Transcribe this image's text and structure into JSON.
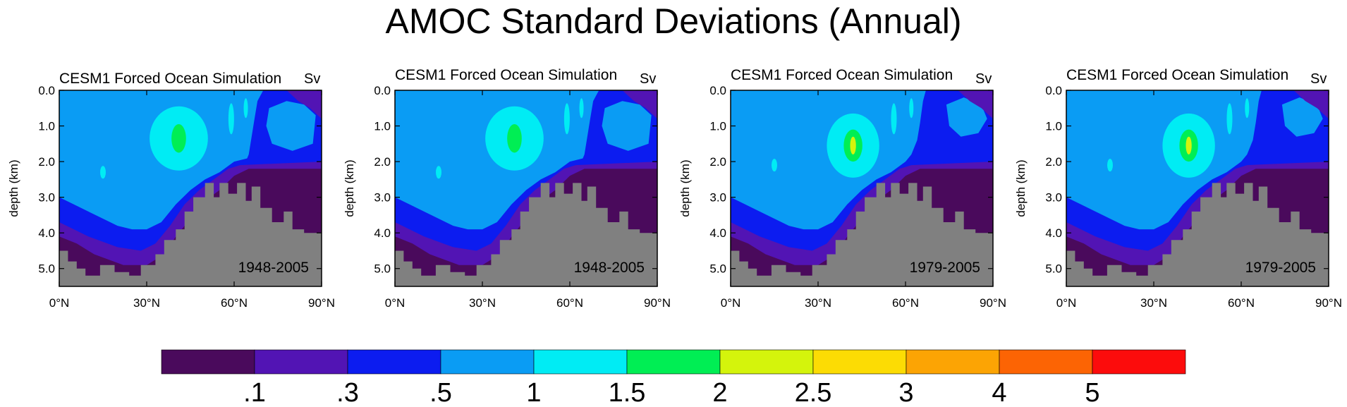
{
  "title": "AMOC Standard Deviations (Annual)",
  "colors": {
    "levels": [
      "#4a0a5c",
      "#5214b4",
      "#0c1cf0",
      "#0a9cf4",
      "#00ecf4",
      "#00ee54",
      "#d4f40c",
      "#fcdc04",
      "#fca404",
      "#fc6404",
      "#fc0c0c"
    ],
    "land": "#808080",
    "axis": "#000000"
  },
  "colorbar": {
    "labels": [
      ".1",
      ".3",
      ".5",
      "1",
      "1.5",
      "2",
      "2.5",
      "3",
      "4",
      "5"
    ]
  },
  "chart_data": [
    {
      "type": "contour",
      "title": "CESM1 Forced Ocean Simulation",
      "unit": "Sv",
      "period": "1948-2005",
      "ylabel": "depth (km)",
      "xlim": [
        0,
        90
      ],
      "ylim": [
        5.5,
        0.0
      ],
      "xticks": [
        "0°N",
        "30°N",
        "60°N",
        "90°N"
      ],
      "yticks": [
        "0.0",
        "1.0",
        "2.0",
        "3.0",
        "4.0",
        "5.0"
      ],
      "max_std_sv": 2.2
    },
    {
      "type": "contour",
      "title": "CESM1 Forced Ocean Simulation",
      "unit": "Sv",
      "period": "1948-2005",
      "ylabel": "depth (km)",
      "xlim": [
        0,
        90
      ],
      "ylim": [
        5.5,
        0.0
      ],
      "xticks": [
        "0°N",
        "30°N",
        "60°N",
        "90°N"
      ],
      "yticks": [
        "0.0",
        "1.0",
        "2.0",
        "3.0",
        "4.0",
        "5.0"
      ],
      "max_std_sv": 2.2
    },
    {
      "type": "contour",
      "title": "CESM1 Forced Ocean Simulation",
      "unit": "Sv",
      "period": "1979-2005",
      "ylabel": "depth (km)",
      "xlim": [
        0,
        90
      ],
      "ylim": [
        5.5,
        0.0
      ],
      "xticks": [
        "0°N",
        "30°N",
        "60°N",
        "90°N"
      ],
      "yticks": [
        "0.0",
        "1.0",
        "2.0",
        "3.0",
        "4.0",
        "5.0"
      ],
      "max_std_sv": 2.7
    },
    {
      "type": "contour",
      "title": "CESM1 Forced Ocean Simulation",
      "unit": "Sv",
      "period": "1979-2005",
      "ylabel": "depth (km)",
      "xlim": [
        0,
        90
      ],
      "ylim": [
        5.5,
        0.0
      ],
      "xticks": [
        "0°N",
        "30°N",
        "60°N",
        "90°N"
      ],
      "yticks": [
        "0.0",
        "1.0",
        "2.0",
        "3.0",
        "4.0",
        "5.0"
      ],
      "max_std_sv": 2.7
    }
  ]
}
